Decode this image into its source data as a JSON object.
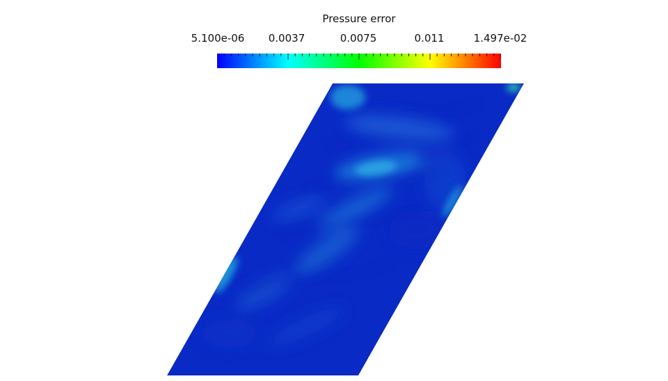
{
  "scalar_bar": {
    "title": "Pressure error",
    "tick_labels": [
      "5.100e-06",
      "0.0037",
      "0.0075",
      "0.011",
      "1.497e-02"
    ],
    "range": [
      5.1e-06,
      0.01497
    ],
    "colormap": [
      "#0000ff",
      "#00ffff",
      "#00ff00",
      "#ffff00",
      "#ff0000"
    ]
  },
  "field": {
    "background_color": "#0a28c8",
    "highlight_color": "#1e9ee6"
  }
}
